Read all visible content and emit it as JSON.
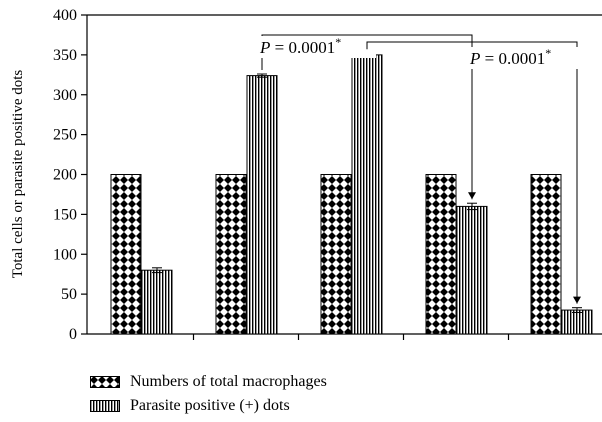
{
  "chart_data": {
    "type": "bar",
    "title": "",
    "xlabel": "",
    "ylabel": "Total cells or parasite positive dots",
    "ylim": [
      0,
      400
    ],
    "yticks": [
      0,
      50,
      100,
      150,
      200,
      250,
      300,
      350,
      400
    ],
    "categories": [
      "",
      "",
      "",
      "",
      ""
    ],
    "series": [
      {
        "name": "Numbers of total macrophages",
        "pattern": "checker",
        "values": [
          200,
          200,
          200,
          200,
          200
        ]
      },
      {
        "name": "Parasite positive (+) dots",
        "pattern": "vertical-lines",
        "values": [
          80,
          324,
          350,
          160,
          30
        ],
        "errors": [
          3,
          2,
          2,
          4,
          3
        ]
      }
    ],
    "annotations": [
      {
        "text": "P = 0.0001",
        "sup": "*",
        "from_group": 1,
        "to_group": 3
      },
      {
        "text": "P = 0.0001",
        "sup": "*",
        "from_group": 2,
        "to_group": 4
      }
    ],
    "grid": false,
    "legend_position": "bottom-left",
    "colors": {
      "bar_fill": "#000000",
      "background": "#ffffff"
    }
  }
}
